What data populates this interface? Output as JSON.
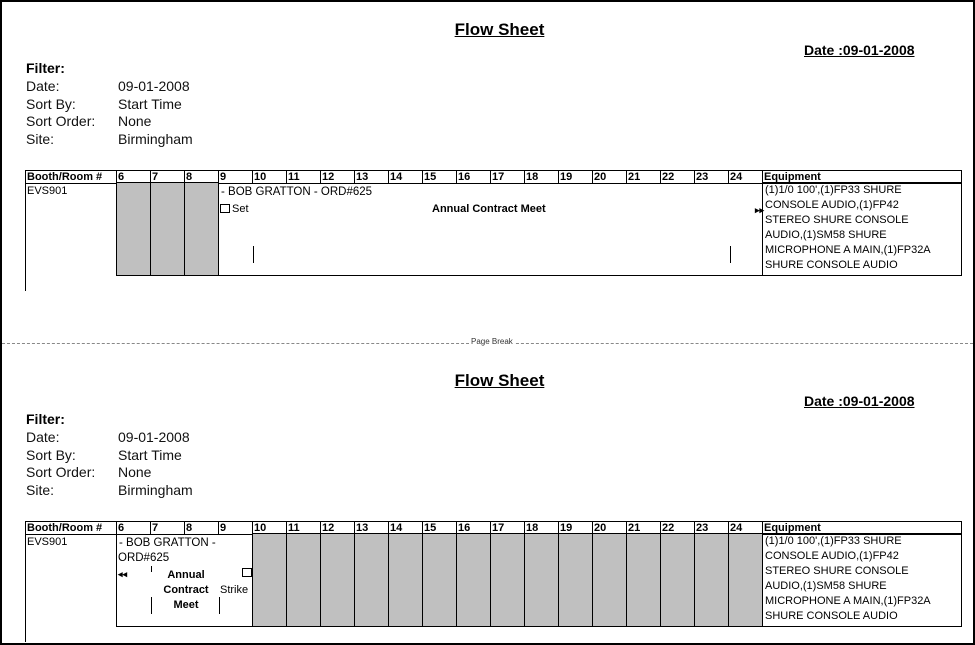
{
  "header": {
    "title": "Flow Sheet",
    "date": "Date :09-01-2008"
  },
  "filter": {
    "heading": "Filter:",
    "rows": [
      {
        "label": "Date:",
        "value": "09-01-2008"
      },
      {
        "label": "Sort By:",
        "value": "Start Time"
      },
      {
        "label": "Sort Order:",
        "value": "None"
      },
      {
        "label": "Site:",
        "value": "Birmingham"
      }
    ]
  },
  "table": {
    "booth_header": "Booth/Room #",
    "hours": [
      "6",
      "7",
      "8",
      "9",
      "10",
      "11",
      "12",
      "13",
      "14",
      "15",
      "16",
      "17",
      "18",
      "19",
      "20",
      "21",
      "22",
      "23",
      "24"
    ],
    "equipment_header": "Equipment",
    "booth": "EVS901",
    "equipment_lines": [
      "(1)1/0 100',(1)FP33 SHURE",
      "CONSOLE AUDIO,(1)FP42",
      "STEREO SHURE CONSOLE",
      "AUDIO,(1)SM58 SHURE",
      "MICROPHONE A MAIN,(1)FP32A",
      "SHURE CONSOLE AUDIO"
    ]
  },
  "page1": {
    "shaded_hours": [
      "6",
      "7",
      "8"
    ],
    "booking": "- BOB GRATTON - ORD#625",
    "set_label": "Set",
    "event": "Annual Contract Meet",
    "continue_icon": "double-arrow-right"
  },
  "page_break": "Page Break",
  "page2": {
    "shaded_hours": [
      "10",
      "11",
      "12",
      "13",
      "14",
      "15",
      "16",
      "17",
      "18",
      "19",
      "20",
      "21",
      "22",
      "23",
      "24"
    ],
    "booking_line1": "- BOB GRATTON -",
    "booking_line2": "ORD#625",
    "event_lines": [
      "Annual",
      "Contract",
      "Meet"
    ],
    "strike_label": "Strike",
    "continue_icon": "double-arrow-left"
  },
  "colors": {
    "shade": "#c0c0c0"
  }
}
